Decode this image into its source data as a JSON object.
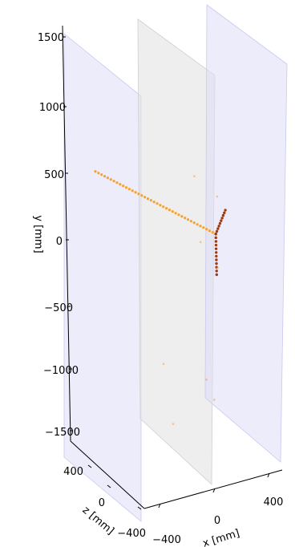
{
  "chart_data": {
    "type": "scatter",
    "projection": "3d",
    "axes": {
      "x": {
        "label": "x [mm]",
        "ticks": [
          "−400",
          "0",
          "400"
        ]
      },
      "y": {
        "label": "y [mm]",
        "ticks": [
          "1500",
          "1000",
          "500",
          "0",
          "−500",
          "−1000",
          "−1500"
        ]
      },
      "z": {
        "label": "z [mm]",
        "ticks": [
          "400",
          "0",
          "−400"
        ]
      }
    },
    "planes": [
      {
        "name": "plane-1",
        "color": "#dcdcf6"
      },
      {
        "name": "plane-2",
        "color": "#e3e3e3"
      },
      {
        "name": "plane-3",
        "color": "#dcdcf6"
      }
    ],
    "track_colors": {
      "main": "#f2a23a",
      "branch": "#a03a12"
    },
    "hits": {
      "main_track": {
        "from": [
          -720,
          620,
          380
        ],
        "to": [
          40,
          40,
          80
        ],
        "count": 40
      },
      "branch_up": {
        "from": [
          40,
          40,
          80
        ],
        "to": [
          110,
          200,
          80
        ],
        "count": 10
      },
      "branch_down": {
        "from": [
          40,
          40,
          80
        ],
        "to": [
          30,
          -250,
          40
        ],
        "count": 12
      }
    },
    "noise_hits": [
      {
        "x": -150,
        "y": 560,
        "z": 0
      },
      {
        "x": 50,
        "y": 320,
        "z": 80
      },
      {
        "x": -80,
        "y": 20,
        "z": 60
      },
      {
        "x": 70,
        "y": -240,
        "z": 120
      },
      {
        "x": -500,
        "y": -650,
        "z": -300
      },
      {
        "x": -450,
        "y": -1100,
        "z": -350
      },
      {
        "x": -20,
        "y": -1050,
        "z": 100
      },
      {
        "x": 20,
        "y": -1200,
        "z": 60
      }
    ]
  }
}
